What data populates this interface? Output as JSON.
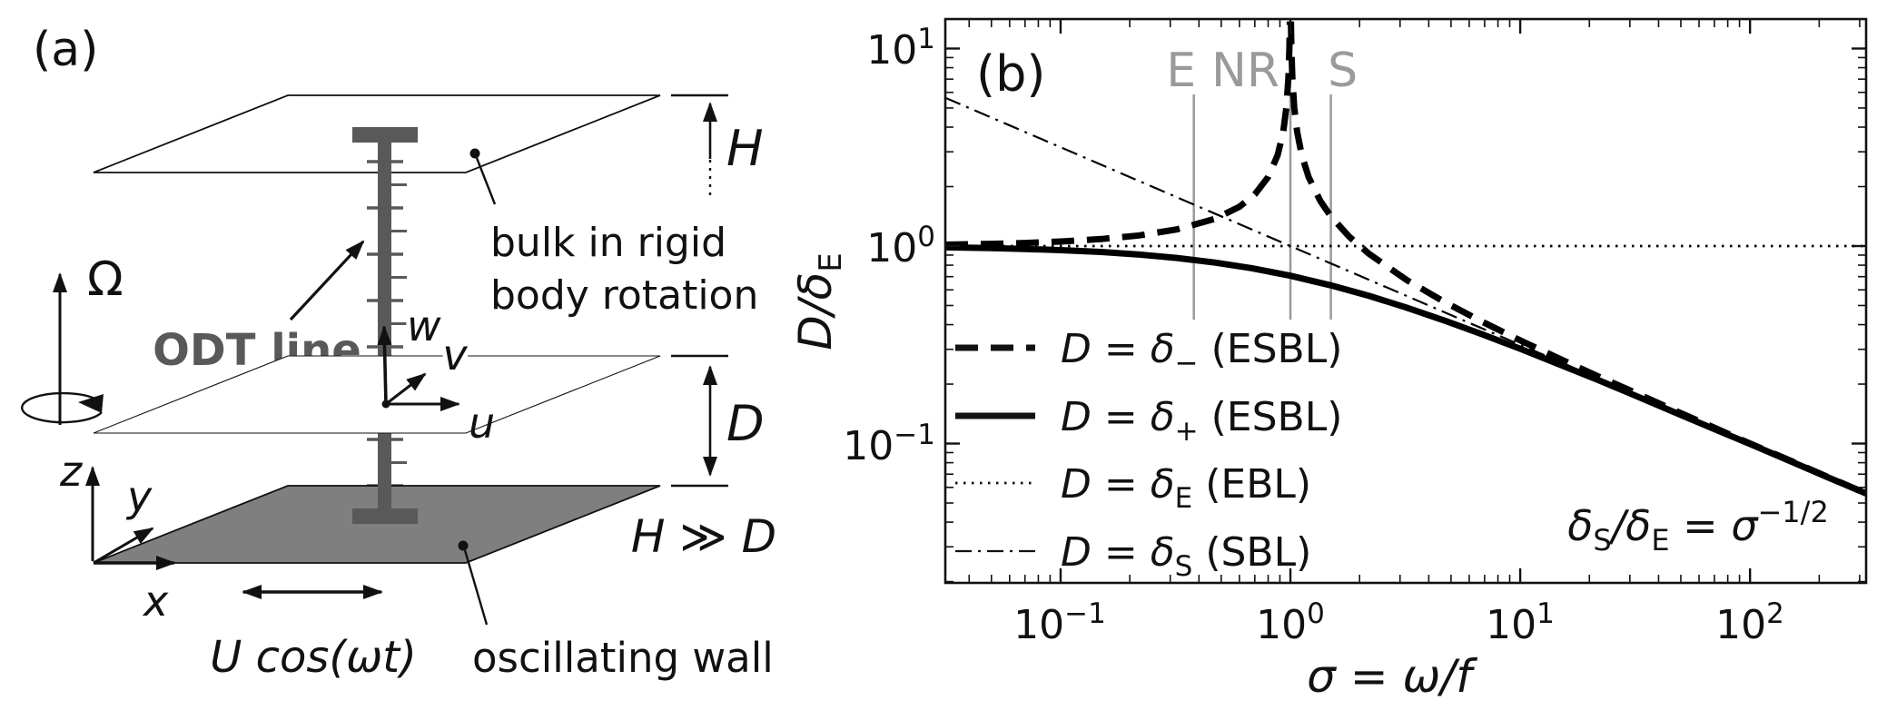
{
  "panel_a": {
    "label": "(a)",
    "omega_label": "Ω",
    "odt_label": "ODT line",
    "bulk_line1": "bulk in rigid",
    "bulk_line2": "body rotation",
    "height_label": "H",
    "gap_label": "D",
    "vel_w": "w",
    "vel_v": "v",
    "vel_u": "u",
    "axis_z": "z",
    "axis_y": "y",
    "axis_x": "x",
    "forcing_label": "U cos(ωt)",
    "wall_label": "oscillating wall",
    "scale_relation": "H ≫ D"
  },
  "panel_b": {
    "label": "(b)",
    "regime_labels": [
      "E",
      "NR",
      "S"
    ],
    "ylabel": {
      "main": "D/δ",
      "sub": "E"
    },
    "xlabel": "σ = ω/f",
    "annotation": {
      "d1": "δ",
      "s1": "S",
      "d2": "/δ",
      "s2": "E",
      "eq": " = ",
      "sigma": "σ",
      "sup": "−1/2"
    },
    "yticks": [
      {
        "base": "10",
        "exp": "1"
      },
      {
        "base": "10",
        "exp": "0"
      },
      {
        "base": "10",
        "exp": "−1"
      }
    ],
    "xticks": [
      {
        "base": "10",
        "exp": "−1"
      },
      {
        "base": "10",
        "exp": "0"
      },
      {
        "base": "10",
        "exp": "1"
      },
      {
        "base": "10",
        "exp": "2"
      }
    ],
    "legend": [
      {
        "var": "D",
        "eq": " = ",
        "delta": "δ",
        "sub": "−",
        "post": " (ESBL)"
      },
      {
        "var": "D",
        "eq": " = ",
        "delta": "δ",
        "sub": "+",
        "post": " (ESBL)"
      },
      {
        "var": "D",
        "eq": " = ",
        "delta": "δ",
        "sub": "E",
        "post": " (EBL)"
      },
      {
        "var": "D",
        "eq": " = ",
        "delta": "δ",
        "sub": "S",
        "post": " (SBL)"
      }
    ]
  },
  "chart_data": {
    "type": "line",
    "title": "",
    "xlabel": "σ = ω/f",
    "ylabel": "D/δE",
    "xscale": "log",
    "yscale": "log",
    "xlim": [
      0.0315,
      320
    ],
    "ylim": [
      0.0197,
      14.1
    ],
    "xticks": [
      0.1,
      1,
      10,
      100
    ],
    "yticks": [
      0.1,
      1,
      10
    ],
    "grid": false,
    "legend_position": "inside lower-left",
    "colors": {
      "curves": "#000000",
      "regime_lines": "#9a9a9a",
      "regime_labels": "#9a9a9a"
    },
    "regime_markers": [
      {
        "label": "E",
        "sigma": 0.38
      },
      {
        "label": "NR",
        "sigma": 1.0
      },
      {
        "label": "S",
        "sigma": 1.5
      }
    ],
    "annotation": "δS/δE = σ^−1/2",
    "series": [
      {
        "name": "D = δ− (ESBL)",
        "style": "thick-dashed",
        "formula": "y = |1 − σ|^(−1/2)",
        "segments": [
          [
            [
              0.0315,
              1.016
            ],
            [
              0.05,
              1.026
            ],
            [
              0.07,
              1.037
            ],
            [
              0.1,
              1.054
            ],
            [
              0.15,
              1.085
            ],
            [
              0.22,
              1.132
            ],
            [
              0.32,
              1.213
            ],
            [
              0.47,
              1.374
            ],
            [
              0.6,
              1.581
            ],
            [
              0.7,
              1.826
            ],
            [
              0.8,
              2.236
            ],
            [
              0.88,
              2.887
            ],
            [
              0.93,
              3.78
            ],
            [
              0.96,
              5.0
            ],
            [
              0.98,
              7.07
            ],
            [
              0.99,
              10.0
            ],
            [
              0.9947,
              13.7
            ]
          ],
          [
            [
              1.0053,
              13.7
            ],
            [
              1.01,
              10.0
            ],
            [
              1.02,
              7.07
            ],
            [
              1.04,
              5.0
            ],
            [
              1.07,
              3.78
            ],
            [
              1.12,
              2.887
            ],
            [
              1.2,
              2.236
            ],
            [
              1.35,
              1.69
            ],
            [
              1.5,
              1.414
            ],
            [
              1.8,
              1.118
            ],
            [
              2.2,
              0.913
            ],
            [
              3.2,
              0.674
            ],
            [
              4.7,
              0.52
            ],
            [
              6.8,
              0.415
            ],
            [
              10,
              0.333
            ],
            [
              15,
              0.267
            ],
            [
              22,
              0.218
            ],
            [
              32,
              0.18
            ],
            [
              47,
              0.147
            ],
            [
              68,
              0.122
            ],
            [
              100,
              0.1
            ],
            [
              150,
              0.082
            ],
            [
              220,
              0.0675
            ],
            [
              320,
              0.0559
            ]
          ]
        ]
      },
      {
        "name": "D = δ+ (ESBL)",
        "style": "thick-solid",
        "formula": "y = (1 + σ)^(−1/2)",
        "segments": [
          [
            [
              0.0315,
              0.985
            ],
            [
              0.05,
              0.976
            ],
            [
              0.07,
              0.967
            ],
            [
              0.1,
              0.953
            ],
            [
              0.15,
              0.933
            ],
            [
              0.22,
              0.905
            ],
            [
              0.32,
              0.87
            ],
            [
              0.47,
              0.825
            ],
            [
              0.68,
              0.772
            ],
            [
              1,
              0.707
            ],
            [
              1.5,
              0.632
            ],
            [
              2.2,
              0.559
            ],
            [
              3.2,
              0.488
            ],
            [
              4.7,
              0.419
            ],
            [
              6.8,
              0.358
            ],
            [
              10,
              0.302
            ],
            [
              15,
              0.25
            ],
            [
              22,
              0.209
            ],
            [
              32,
              0.174
            ],
            [
              47,
              0.144
            ],
            [
              68,
              0.12
            ],
            [
              100,
              0.0995
            ],
            [
              150,
              0.0814
            ],
            [
              220,
              0.0672
            ],
            [
              320,
              0.0559
            ]
          ]
        ]
      },
      {
        "name": "D = δE (EBL)",
        "style": "dotted",
        "formula": "y = 1",
        "segments": [
          [
            [
              0.0315,
              1
            ],
            [
              320,
              1
            ]
          ]
        ]
      },
      {
        "name": "D = δS (SBL)",
        "style": "dashdot",
        "formula": "y = σ^(−1/2)",
        "segments": [
          [
            [
              0.0315,
              5.63
            ],
            [
              0.1,
              3.162
            ],
            [
              0.32,
              1.768
            ],
            [
              1,
              1
            ],
            [
              3.2,
              0.559
            ],
            [
              10,
              0.316
            ],
            [
              32,
              0.177
            ],
            [
              100,
              0.1
            ],
            [
              320,
              0.0559
            ]
          ]
        ]
      }
    ]
  }
}
